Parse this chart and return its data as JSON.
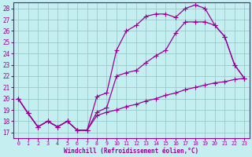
{
  "xlabel": "Windchill (Refroidissement éolien,°C)",
  "bg_color": "#c4eef0",
  "line_color": "#990099",
  "grid_color": "#99cccc",
  "xlim": [
    -0.5,
    23.5
  ],
  "ylim": [
    16.5,
    28.5
  ],
  "yticks": [
    17,
    18,
    19,
    20,
    21,
    22,
    23,
    24,
    25,
    26,
    27,
    28
  ],
  "xticks": [
    0,
    1,
    2,
    3,
    4,
    5,
    6,
    7,
    8,
    9,
    10,
    11,
    12,
    13,
    14,
    15,
    16,
    17,
    18,
    19,
    20,
    21,
    22,
    23
  ],
  "line1_x": [
    0,
    1,
    2,
    3,
    4,
    5,
    6,
    7,
    8,
    9,
    10,
    11,
    12,
    13,
    14,
    15,
    16,
    17,
    18,
    19,
    20,
    21,
    22,
    23
  ],
  "line1_y": [
    20.0,
    18.7,
    17.5,
    18.0,
    17.5,
    18.0,
    17.2,
    17.2,
    20.2,
    20.5,
    24.3,
    26.0,
    26.5,
    27.3,
    27.5,
    27.5,
    27.2,
    28.0,
    28.3,
    28.0,
    26.5,
    25.5,
    23.0,
    21.8
  ],
  "line2_x": [
    0,
    1,
    2,
    3,
    4,
    5,
    6,
    7,
    8,
    9,
    10,
    11,
    12,
    13,
    14,
    15,
    16,
    17,
    18,
    19,
    20,
    21,
    22,
    23
  ],
  "line2_y": [
    20.0,
    18.7,
    17.5,
    18.0,
    17.5,
    18.0,
    17.2,
    17.2,
    18.8,
    19.2,
    22.0,
    22.3,
    22.5,
    23.2,
    23.8,
    24.3,
    25.8,
    26.8,
    26.8,
    26.8,
    26.5,
    25.5,
    23.0,
    21.8
  ],
  "line3_x": [
    0,
    1,
    2,
    3,
    4,
    5,
    6,
    7,
    8,
    9,
    10,
    11,
    12,
    13,
    14,
    15,
    16,
    17,
    18,
    19,
    20,
    21,
    22,
    23
  ],
  "line3_y": [
    20.0,
    18.7,
    17.5,
    18.0,
    17.5,
    18.0,
    17.2,
    17.2,
    18.5,
    18.8,
    19.0,
    19.3,
    19.5,
    19.8,
    20.0,
    20.3,
    20.5,
    20.8,
    21.0,
    21.2,
    21.4,
    21.5,
    21.7,
    21.8
  ]
}
